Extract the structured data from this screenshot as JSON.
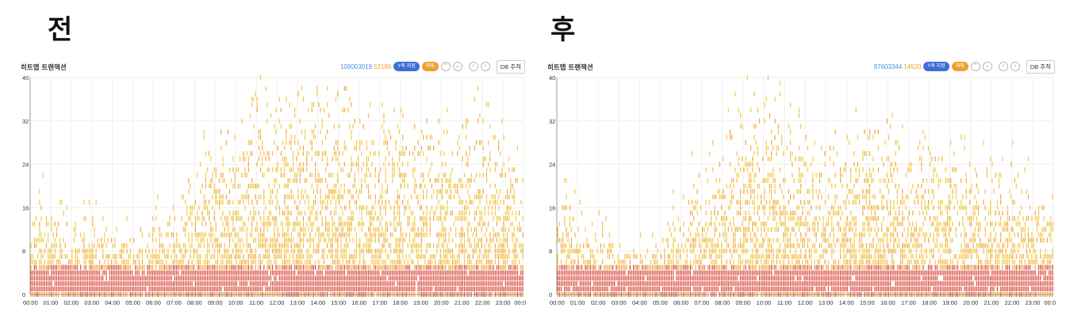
{
  "labels": {
    "before": "전",
    "after": "후"
  },
  "panels": {
    "before": {
      "title": "히트맵 트랜잭션",
      "count_total": "109003019",
      "count_sub": "52185",
      "y_toggle_label": "Y축 지정",
      "reset_label": "해제",
      "db_label": "DB 추적"
    },
    "after": {
      "title": "히트맵 트랜잭션",
      "count_total": "97603344",
      "count_sub": "14520",
      "y_toggle_label": "Y축 지정",
      "reset_label": "해제",
      "db_label": "DB 추적"
    }
  },
  "colors": {
    "low": "#f2c744",
    "mid": "#f0a73a",
    "high": "#d8473a",
    "grid": "#efefef",
    "axis": "#999999",
    "count_total": "#4a90e2",
    "count_sub": "#f0a030"
  },
  "chart_data": [
    {
      "type": "heatmap",
      "name": "before",
      "x_ticks": [
        "00:00",
        "01:00",
        "02:00",
        "03:00",
        "04:00",
        "05:00",
        "06:00",
        "07:00",
        "08:00",
        "09:00",
        "10:00",
        "11:00",
        "12:00",
        "13:00",
        "14:00",
        "15:00",
        "16:00",
        "17:00",
        "18:00",
        "19:00",
        "20:00",
        "21:00",
        "22:00",
        "23:00",
        "00:0"
      ],
      "y_ticks": [
        0,
        8,
        16,
        24,
        32,
        40
      ],
      "ylim": [
        0,
        40
      ],
      "xlim_hours": [
        0,
        24
      ],
      "band_top": 5,
      "red_top": 4,
      "density_profile_hours": [
        0,
        1,
        2,
        3,
        4,
        5,
        6,
        7,
        8,
        9,
        10,
        11,
        12,
        13,
        14,
        15,
        16,
        17,
        18,
        19,
        20,
        21,
        22,
        23,
        24
      ],
      "density_profile_max_y": [
        20,
        17,
        15,
        14,
        12,
        12,
        15,
        17,
        24,
        30,
        34,
        38,
        40,
        40,
        40,
        38,
        38,
        36,
        34,
        32,
        32,
        34,
        36,
        30,
        22
      ],
      "grid": true,
      "legend": "none"
    },
    {
      "type": "heatmap",
      "name": "after",
      "x_ticks": [
        "00:00",
        "01:00",
        "02:00",
        "03:00",
        "04:00",
        "05:00",
        "06:00",
        "07:00",
        "08:00",
        "09:00",
        "10:00",
        "11:00",
        "12:00",
        "13:00",
        "14:00",
        "15:00",
        "16:00",
        "17:00",
        "18:00",
        "19:00",
        "20:00",
        "21:00",
        "22:00",
        "23:00",
        "00:0"
      ],
      "y_ticks": [
        0,
        8,
        16,
        24,
        32,
        40
      ],
      "ylim": [
        0,
        40
      ],
      "xlim_hours": [
        0,
        24
      ],
      "band_top": 5,
      "red_top": 4,
      "density_profile_hours": [
        0,
        1,
        2,
        3,
        4,
        5,
        6,
        7,
        8,
        9,
        10,
        11,
        12,
        13,
        14,
        15,
        16,
        17,
        18,
        19,
        20,
        21,
        22,
        23,
        24
      ],
      "density_profile_max_y": [
        20,
        16,
        14,
        10,
        8,
        10,
        20,
        24,
        28,
        38,
        40,
        34,
        30,
        30,
        32,
        33,
        32,
        30,
        28,
        26,
        26,
        25,
        24,
        24,
        20
      ],
      "grid": true,
      "legend": "none"
    }
  ]
}
